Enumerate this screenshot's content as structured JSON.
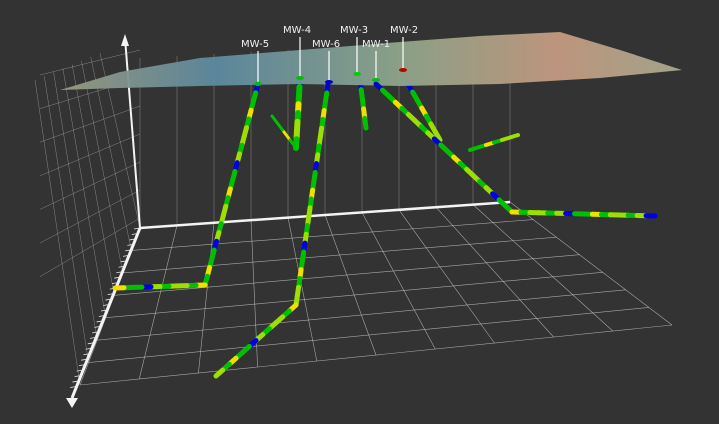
{
  "scene": {
    "background": "#333333",
    "surface_colors": [
      "#5f8aa0",
      "#8fa58a",
      "#c9a27e",
      "#b86a5a"
    ],
    "grid_color": "#d8d8d8",
    "log_colors": {
      "high": "#00c000",
      "mid": "#9be000",
      "low": "#0000e0",
      "warn": "#f0e000",
      "alert": "#e07000"
    }
  },
  "wells": [
    {
      "name": "MW-5",
      "marker_color": "#00c000"
    },
    {
      "name": "MW-4",
      "marker_color": "#00c000"
    },
    {
      "name": "MW-6",
      "marker_color": "#0000c0"
    },
    {
      "name": "MW-3",
      "marker_color": "#00d000"
    },
    {
      "name": "MW-1",
      "marker_color": "#00c000"
    },
    {
      "name": "MW-2",
      "marker_color": "#c00000"
    }
  ]
}
